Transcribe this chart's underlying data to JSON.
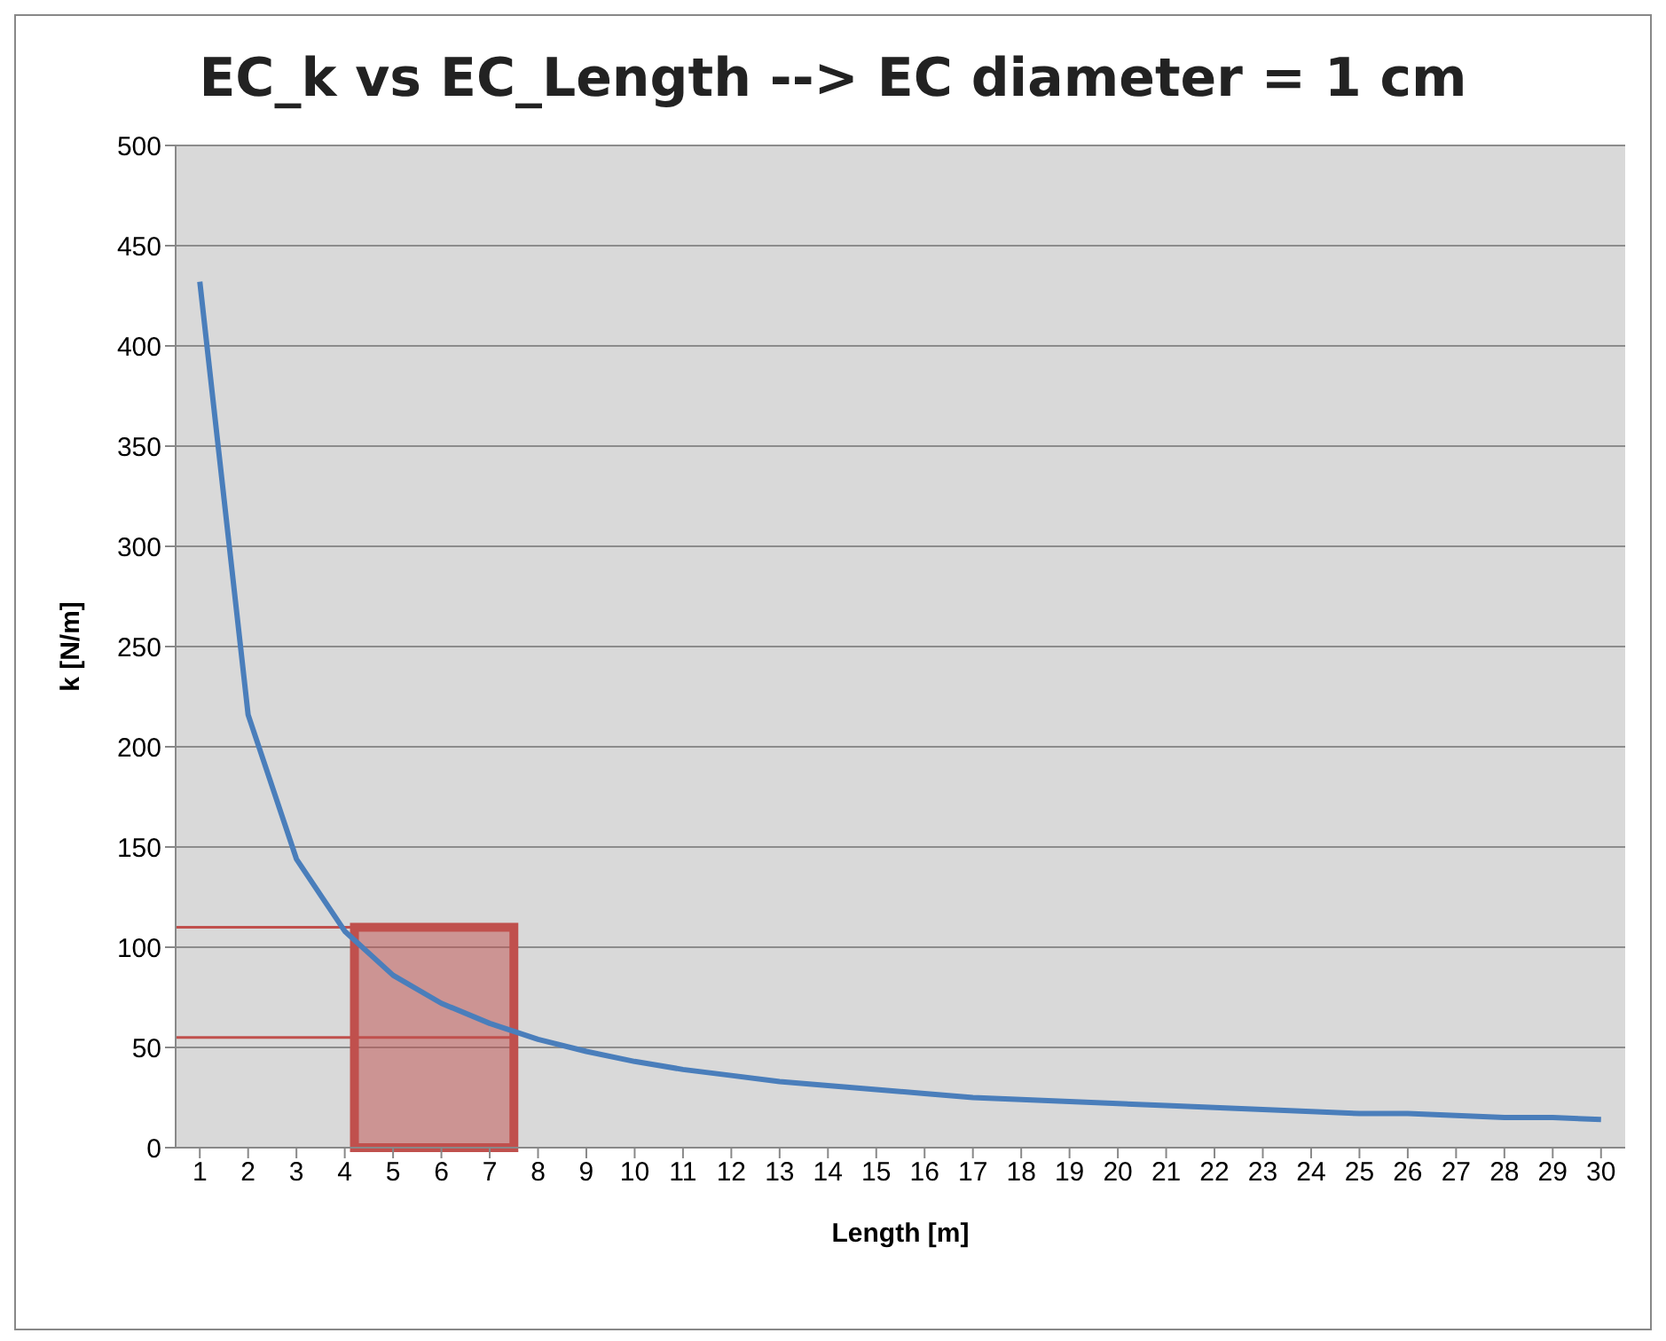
{
  "chart_data": {
    "type": "line",
    "title": "EC_k vs EC_Length --> EC diameter = 1 cm",
    "xlabel": "Length [m]",
    "ylabel": "k [N/m]",
    "x": [
      1,
      2,
      3,
      4,
      5,
      6,
      7,
      8,
      9,
      10,
      11,
      12,
      13,
      14,
      15,
      16,
      17,
      18,
      19,
      20,
      21,
      22,
      23,
      24,
      25,
      26,
      27,
      28,
      29,
      30
    ],
    "series": [
      {
        "color": "#4a7ebb",
        "values": [
          432,
          216,
          144,
          108,
          86,
          72,
          62,
          54,
          48,
          43,
          39,
          36,
          33,
          31,
          29,
          27,
          25,
          24,
          23,
          22,
          21,
          20,
          19,
          18,
          17,
          17,
          16,
          15,
          15,
          14
        ]
      }
    ],
    "xlim": [
      0.5,
      30.5
    ],
    "xticks": [
      1,
      2,
      3,
      4,
      5,
      6,
      7,
      8,
      9,
      10,
      11,
      12,
      13,
      14,
      15,
      16,
      17,
      18,
      19,
      20,
      21,
      22,
      23,
      24,
      25,
      26,
      27,
      28,
      29,
      30
    ],
    "ylim": [
      0,
      500
    ],
    "yticks": [
      0,
      50,
      100,
      150,
      200,
      250,
      300,
      350,
      400,
      450,
      500
    ],
    "grid": "y",
    "legend": false,
    "marker": "none",
    "line_style": "solid",
    "ref_lines": [
      {
        "axis": "y",
        "value": 110,
        "color": "#c0504d"
      },
      {
        "axis": "y",
        "value": 55,
        "color": "#c0504d"
      }
    ],
    "bands": [
      {
        "axis": "x",
        "from": 4.2,
        "to": 7.5,
        "color": "#c0504d"
      }
    ]
  }
}
